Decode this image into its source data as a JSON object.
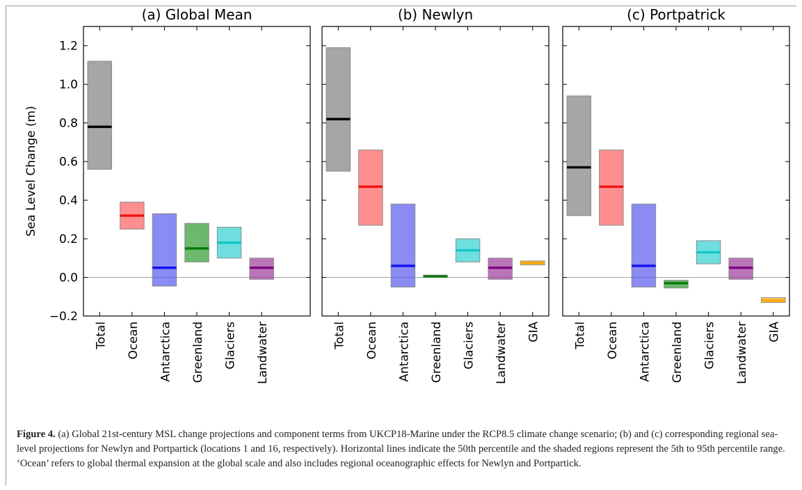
{
  "colors": {
    "Total": "#808080",
    "Ocean": "#ff6060",
    "Antarctica": "#5a5af0",
    "Greenland": "#2e9a2e",
    "Glaciers": "#30d0d0",
    "Landwater": "#9a3c9a",
    "GIA": "#f0b020"
  },
  "median_colors": {
    "Total": "#000000",
    "Ocean": "#f01010",
    "Antarctica": "#1010ee",
    "Greenland": "#087a08",
    "Glaciers": "#10c8c8",
    "Landwater": "#800080",
    "GIA": "#ffa500"
  },
  "chart_data": [
    {
      "type": "bar",
      "title": "(a) Global Mean",
      "ylabel": "Sea Level Change (m)",
      "xlabel": "",
      "ylim": [
        -0.2,
        1.3
      ],
      "yticks": [
        -0.2,
        0.0,
        0.2,
        0.4,
        0.6,
        0.8,
        1.0,
        1.2
      ],
      "ytick_labels": [
        "−0.2",
        "0.0",
        "0.2",
        "0.4",
        "0.6",
        "0.8",
        "1.0",
        "1.2"
      ],
      "categories": [
        "Total",
        "Ocean",
        "Antarctica",
        "Greenland",
        "Glaciers",
        "Landwater"
      ],
      "slots": 7,
      "p05": [
        0.56,
        0.25,
        -0.045,
        0.08,
        0.1,
        -0.01
      ],
      "p50": [
        0.78,
        0.32,
        0.05,
        0.15,
        0.18,
        0.05
      ],
      "p95": [
        1.12,
        0.39,
        0.33,
        0.28,
        0.26,
        0.1
      ]
    },
    {
      "type": "bar",
      "title": "(b) Newlyn",
      "ylim": [
        -0.2,
        1.3
      ],
      "categories": [
        "Total",
        "Ocean",
        "Antarctica",
        "Greenland",
        "Glaciers",
        "Landwater",
        "GIA"
      ],
      "slots": 7,
      "p05": [
        0.55,
        0.27,
        -0.05,
        0.0,
        0.08,
        -0.01,
        0.065
      ],
      "p50": [
        0.82,
        0.47,
        0.06,
        0.005,
        0.14,
        0.05,
        0.075
      ],
      "p95": [
        1.19,
        0.66,
        0.38,
        0.012,
        0.2,
        0.1,
        0.085
      ]
    },
    {
      "type": "bar",
      "title": "(c) Portpatrick",
      "ylim": [
        -0.2,
        1.3
      ],
      "categories": [
        "Total",
        "Ocean",
        "Antarctica",
        "Greenland",
        "Glaciers",
        "Landwater",
        "GIA"
      ],
      "slots": 7,
      "p05": [
        0.32,
        0.27,
        -0.05,
        -0.055,
        0.07,
        -0.01,
        -0.13
      ],
      "p50": [
        0.57,
        0.47,
        0.06,
        -0.03,
        0.13,
        0.05,
        -0.12
      ],
      "p95": [
        0.94,
        0.66,
        0.38,
        -0.015,
        0.19,
        0.1,
        -0.105
      ]
    }
  ],
  "caption": {
    "label": "Figure 4.",
    "text": " (a) Global 21st-century MSL change projections and component terms from UKCP18-Marine under the RCP8.5 climate change scenario; (b) and (c) corresponding regional sea-level projections for Newlyn and Portpartick (locations 1 and 16, respectively). Horizontal lines indicate the 50th percentile and the shaded regions represent the 5th to 95th percentile range. ‘Ocean’ refers to global thermal expansion at the global scale and also includes regional oceanographic effects for Newlyn and Portpartick."
  }
}
